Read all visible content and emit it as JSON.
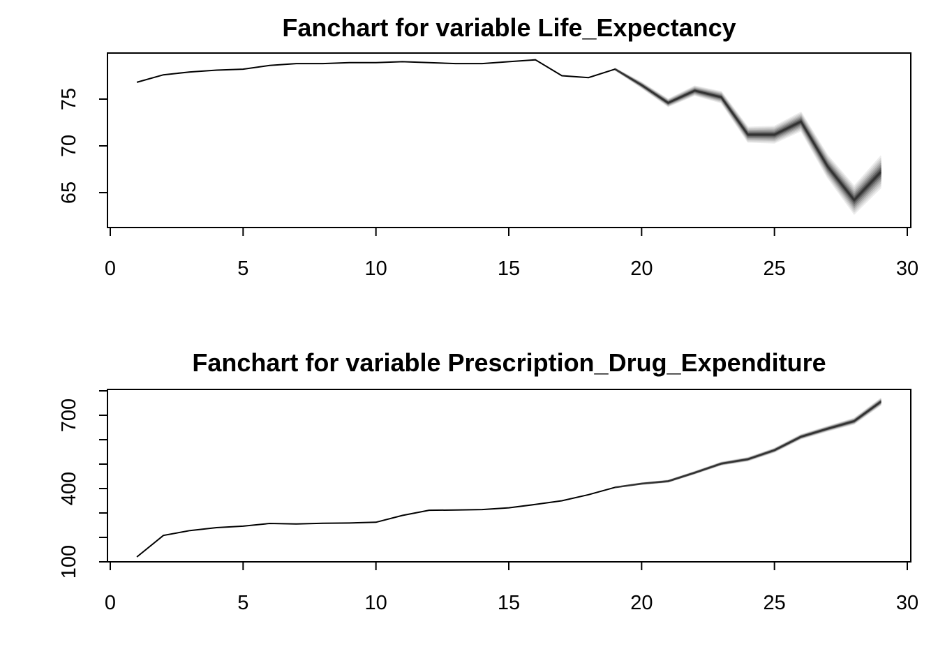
{
  "chart_data": [
    {
      "type": "line",
      "title": "Fanchart for variable Life_Expectancy",
      "xlabel": "",
      "ylabel": "",
      "xlim": [
        0,
        30
      ],
      "ylim": [
        60.5,
        80
      ],
      "x_ticks": [
        0,
        5,
        10,
        15,
        20,
        25,
        30
      ],
      "y_ticks": [
        65,
        70,
        75
      ],
      "observed": {
        "x": [
          1,
          2,
          3,
          4,
          5,
          6,
          7,
          8,
          9,
          10,
          11,
          12,
          13,
          14,
          15,
          16,
          17,
          18,
          19
        ],
        "y": [
          76.8,
          77.6,
          77.9,
          78.1,
          78.2,
          78.6,
          78.8,
          78.8,
          78.9,
          78.9,
          79.0,
          78.9,
          78.8,
          78.8,
          79.0,
          79.2,
          77.5,
          77.3,
          78.2
        ]
      },
      "forecast": {
        "x": [
          19,
          20,
          21,
          22,
          23,
          24,
          25,
          26,
          27,
          28,
          29
        ],
        "y": [
          78.2,
          76.5,
          74.6,
          75.9,
          75.2,
          71.2,
          71.2,
          72.6,
          67.8,
          64.2,
          67.2
        ],
        "half_width": [
          0.1,
          0.3,
          0.4,
          0.5,
          0.6,
          0.8,
          0.9,
          1.0,
          1.2,
          1.5,
          1.7
        ]
      }
    },
    {
      "type": "line",
      "title": "Fanchart for variable Prescription_Drug_Expenditure",
      "xlabel": "",
      "ylabel": "",
      "xlim": [
        0,
        30
      ],
      "ylim": [
        100,
        810
      ],
      "x_ticks": [
        0,
        5,
        10,
        15,
        20,
        25,
        30
      ],
      "y_ticks": [
        100,
        200,
        300,
        400,
        500,
        600,
        700,
        800
      ],
      "y_tick_labels": [
        "100",
        "",
        "",
        "400",
        "",
        "",
        "700",
        ""
      ],
      "observed": {
        "x": [
          1,
          2,
          3,
          4,
          5,
          6,
          7,
          8,
          9,
          10,
          11,
          12,
          13,
          14,
          15,
          16,
          17,
          18,
          19
        ],
        "y": [
          120,
          208,
          228,
          240,
          246,
          257,
          255,
          258,
          259,
          262,
          290,
          311,
          312,
          314,
          321,
          335,
          350,
          375,
          405
        ]
      },
      "forecast": {
        "x": [
          19,
          20,
          21,
          22,
          23,
          24,
          25,
          26,
          27,
          28,
          29
        ],
        "y": [
          405,
          420,
          430,
          465,
          502,
          520,
          557,
          612,
          645,
          676,
          755
        ],
        "half_width": [
          1,
          3,
          4,
          5,
          6,
          7,
          8,
          9,
          10,
          12,
          14
        ]
      }
    }
  ]
}
